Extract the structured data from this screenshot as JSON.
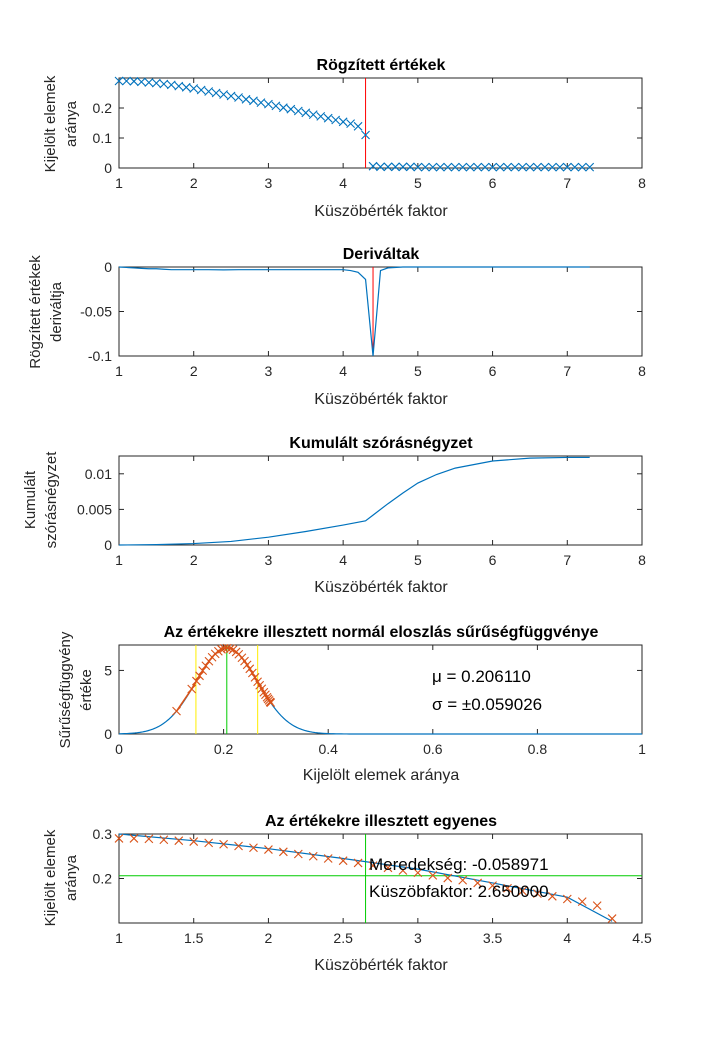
{
  "colors": {
    "series_blue": "#0072BD",
    "series_orange": "#D95319",
    "marker_red": "#FF0000",
    "marker_green": "#00CC00",
    "marker_yellow": "#FFEE00",
    "axis": "#262626"
  },
  "chart_data": [
    {
      "type": "scatter",
      "title": "Rögzített értékek",
      "xlabel": "Küszöbérték faktor",
      "ylabel": [
        "Kijelölt elemek",
        "aránya"
      ],
      "xlim": [
        1,
        8
      ],
      "ylim": [
        0,
        0.3
      ],
      "xticks": [
        1,
        2,
        3,
        4,
        5,
        6,
        7,
        8
      ],
      "xtick_labels": [
        "1",
        "2",
        "3",
        "4",
        "5",
        "6",
        "7",
        "8"
      ],
      "yticks": [
        0,
        0.1,
        0.2
      ],
      "ytick_labels": [
        "0",
        "0.1",
        "0.2"
      ],
      "grid": false,
      "series": [
        {
          "marker": "x",
          "color": "#0072BD",
          "x": [
            1,
            1.1,
            1.2,
            1.3,
            1.4,
            1.5,
            1.6,
            1.7,
            1.8,
            1.9,
            2,
            2.1,
            2.2,
            2.3,
            2.4,
            2.5,
            2.6,
            2.7,
            2.8,
            2.9,
            3,
            3.1,
            3.2,
            3.3,
            3.4,
            3.5,
            3.6,
            3.7,
            3.8,
            3.9,
            4,
            4.1,
            4.2,
            4.3,
            4.4,
            4.5,
            4.6,
            4.7,
            4.8,
            4.9,
            5,
            5.1,
            5.2,
            5.3,
            5.4,
            5.5,
            5.6,
            5.7,
            5.8,
            5.9,
            6,
            6.1,
            6.2,
            6.3,
            6.4,
            6.5,
            6.6,
            6.7,
            6.8,
            6.9,
            7,
            7.1,
            7.2,
            7.3
          ],
          "y": [
            0.29,
            0.29,
            0.289,
            0.287,
            0.285,
            0.283,
            0.28,
            0.277,
            0.273,
            0.269,
            0.265,
            0.26,
            0.255,
            0.25,
            0.245,
            0.24,
            0.235,
            0.229,
            0.224,
            0.218,
            0.213,
            0.207,
            0.201,
            0.196,
            0.19,
            0.184,
            0.178,
            0.172,
            0.166,
            0.16,
            0.154,
            0.148,
            0.139,
            0.11,
            0.006,
            0.004,
            0.004,
            0.004,
            0.004,
            0.004,
            0.003,
            0.003,
            0.003,
            0.003,
            0.003,
            0.003,
            0.003,
            0.003,
            0.003,
            0.003,
            0.003,
            0.003,
            0.003,
            0.003,
            0.003,
            0.003,
            0.003,
            0.003,
            0.003,
            0.003,
            0.003,
            0.003,
            0.003,
            0.003
          ]
        }
      ],
      "vlines": [
        {
          "x": 4.3,
          "color": "#FF0000"
        }
      ]
    },
    {
      "type": "line",
      "title": "Deriváltak",
      "xlabel": "Küszöbérték faktor",
      "ylabel": [
        "Rögzített értékek",
        "deriváltja"
      ],
      "xlim": [
        1,
        8
      ],
      "ylim": [
        -0.1,
        0
      ],
      "xticks": [
        1,
        2,
        3,
        4,
        5,
        6,
        7,
        8
      ],
      "xtick_labels": [
        "1",
        "2",
        "3",
        "4",
        "5",
        "6",
        "7",
        "8"
      ],
      "yticks": [
        -0.1,
        -0.05,
        0
      ],
      "ytick_labels": [
        "-0.1",
        "-0.05",
        "0"
      ],
      "grid": false,
      "series": [
        {
          "color": "#0072BD",
          "x": [
            1,
            1.1,
            1.2,
            1.3,
            1.4,
            1.5,
            1.6,
            1.7,
            1.8,
            1.9,
            2,
            2.2,
            2.4,
            2.6,
            2.8,
            3,
            3.2,
            3.4,
            3.6,
            3.8,
            4,
            4.1,
            4.2,
            4.3,
            4.4,
            4.5,
            4.6,
            4.8,
            5,
            5.5,
            6,
            6.5,
            7,
            7.3
          ],
          "y": [
            0,
            -0.0005,
            -0.001,
            -0.0015,
            -0.002,
            -0.002,
            -0.0025,
            -0.003,
            -0.003,
            -0.003,
            -0.003,
            -0.003,
            -0.0032,
            -0.003,
            -0.003,
            -0.003,
            -0.003,
            -0.003,
            -0.003,
            -0.003,
            -0.003,
            -0.004,
            -0.006,
            -0.014,
            -0.1,
            -0.004,
            -0.001,
            0,
            0,
            0,
            0,
            0,
            0,
            0
          ]
        }
      ],
      "vlines": [
        {
          "x": 4.4,
          "color": "#FF0000"
        }
      ]
    },
    {
      "type": "line",
      "title": "Kumulált szórásnégyzet",
      "xlabel": "Küszöbérték faktor",
      "ylabel": [
        "Kumulált",
        "szórásnégyzet"
      ],
      "xlim": [
        1,
        8
      ],
      "ylim": [
        0,
        0.0125
      ],
      "xticks": [
        1,
        2,
        3,
        4,
        5,
        6,
        7,
        8
      ],
      "xtick_labels": [
        "1",
        "2",
        "3",
        "4",
        "5",
        "6",
        "7",
        "8"
      ],
      "yticks": [
        0,
        0.005,
        0.01
      ],
      "ytick_labels": [
        "0",
        "0.005",
        "0.01"
      ],
      "grid": false,
      "series": [
        {
          "color": "#0072BD",
          "x": [
            1,
            1.5,
            2,
            2.5,
            3,
            3.5,
            4,
            4.3,
            4.4,
            4.6,
            4.8,
            5,
            5.25,
            5.5,
            6,
            6.5,
            7,
            7.3
          ],
          "y": [
            0,
            5e-05,
            0.0002,
            0.0005,
            0.0011,
            0.0019,
            0.0028,
            0.0034,
            0.0042,
            0.0058,
            0.0073,
            0.0087,
            0.0099,
            0.0108,
            0.0118,
            0.0122,
            0.0123,
            0.0123
          ]
        }
      ]
    },
    {
      "type": "line",
      "title": "Az értékekre illesztett normál eloszlás sűrűségfüggvénye",
      "xlabel": "Kijelölt elemek aránya",
      "ylabel": [
        "Sűrűségfüggvény",
        "értéke"
      ],
      "xlim": [
        0,
        1
      ],
      "ylim": [
        0,
        7
      ],
      "xticks": [
        0,
        0.2,
        0.4,
        0.6,
        0.8,
        1
      ],
      "xtick_labels": [
        "0",
        "0.2",
        "0.4",
        "0.6",
        "0.8",
        "1"
      ],
      "yticks": [
        0,
        5
      ],
      "ytick_labels": [
        "0",
        "5"
      ],
      "grid": false,
      "normal_fit": {
        "mu": 0.20611,
        "sigma": 0.059026,
        "color": "#0072BD"
      },
      "points": {
        "marker": "x",
        "color": "#D95319",
        "x": [
          0.11,
          0.139,
          0.148,
          0.154,
          0.16,
          0.166,
          0.172,
          0.178,
          0.184,
          0.19,
          0.196,
          0.201,
          0.207,
          0.213,
          0.218,
          0.224,
          0.229,
          0.235,
          0.24,
          0.245,
          0.25,
          0.255,
          0.26,
          0.265,
          0.269,
          0.273,
          0.277,
          0.28,
          0.283,
          0.285,
          0.287,
          0.289,
          0.29
        ]
      },
      "vlines": [
        {
          "x": 0.147084,
          "color": "#FFEE00"
        },
        {
          "x": 0.20611,
          "color": "#00CC00"
        },
        {
          "x": 0.265136,
          "color": "#FFEE00"
        }
      ],
      "annotations": [
        "μ = 0.206110",
        "σ = ±0.059026"
      ]
    },
    {
      "type": "line",
      "title": "Az értékekre illesztett egyenes",
      "xlabel": "Küszöbérték faktor",
      "ylabel": [
        "Kijelölt elemek",
        "aránya"
      ],
      "xlim": [
        1,
        4.5
      ],
      "ylim": [
        0.1,
        0.3
      ],
      "xticks": [
        1,
        1.5,
        2,
        2.5,
        3,
        3.5,
        4,
        4.5
      ],
      "xtick_labels": [
        "1",
        "1.5",
        "2",
        "2.5",
        "3",
        "3.5",
        "4",
        "4.5"
      ],
      "yticks": [
        0.2,
        0.3
      ],
      "ytick_labels": [
        "0.2",
        "0.3"
      ],
      "grid": false,
      "fit_curve": {
        "color": "#0072BD",
        "x": [
          1,
          1.5,
          2,
          2.5,
          3,
          3.5,
          4,
          4.3
        ],
        "y": [
          0.3,
          0.285,
          0.267,
          0.245,
          0.221,
          0.19,
          0.158,
          0.104
        ]
      },
      "points": {
        "marker": "x",
        "color": "#D95319",
        "x": [
          1,
          1.1,
          1.2,
          1.3,
          1.4,
          1.5,
          1.6,
          1.7,
          1.8,
          1.9,
          2,
          2.1,
          2.2,
          2.3,
          2.4,
          2.5,
          2.6,
          2.7,
          2.8,
          2.9,
          3,
          3.1,
          3.2,
          3.3,
          3.4,
          3.5,
          3.6,
          3.7,
          3.8,
          3.9,
          4,
          4.1,
          4.2,
          4.3
        ],
        "y": [
          0.29,
          0.29,
          0.289,
          0.287,
          0.285,
          0.283,
          0.28,
          0.277,
          0.273,
          0.269,
          0.265,
          0.26,
          0.255,
          0.25,
          0.245,
          0.24,
          0.235,
          0.229,
          0.224,
          0.218,
          0.213,
          0.207,
          0.201,
          0.196,
          0.19,
          0.184,
          0.178,
          0.172,
          0.166,
          0.16,
          0.154,
          0.148,
          0.139,
          0.11
        ]
      },
      "vlines": [
        {
          "x": 2.65,
          "color": "#00CC00"
        }
      ],
      "hlines": [
        {
          "y": 0.20611,
          "color": "#00CC00"
        }
      ],
      "annotations": [
        "Meredekség: -0.058971",
        "Küszöbfaktor: 2.650000"
      ]
    }
  ]
}
